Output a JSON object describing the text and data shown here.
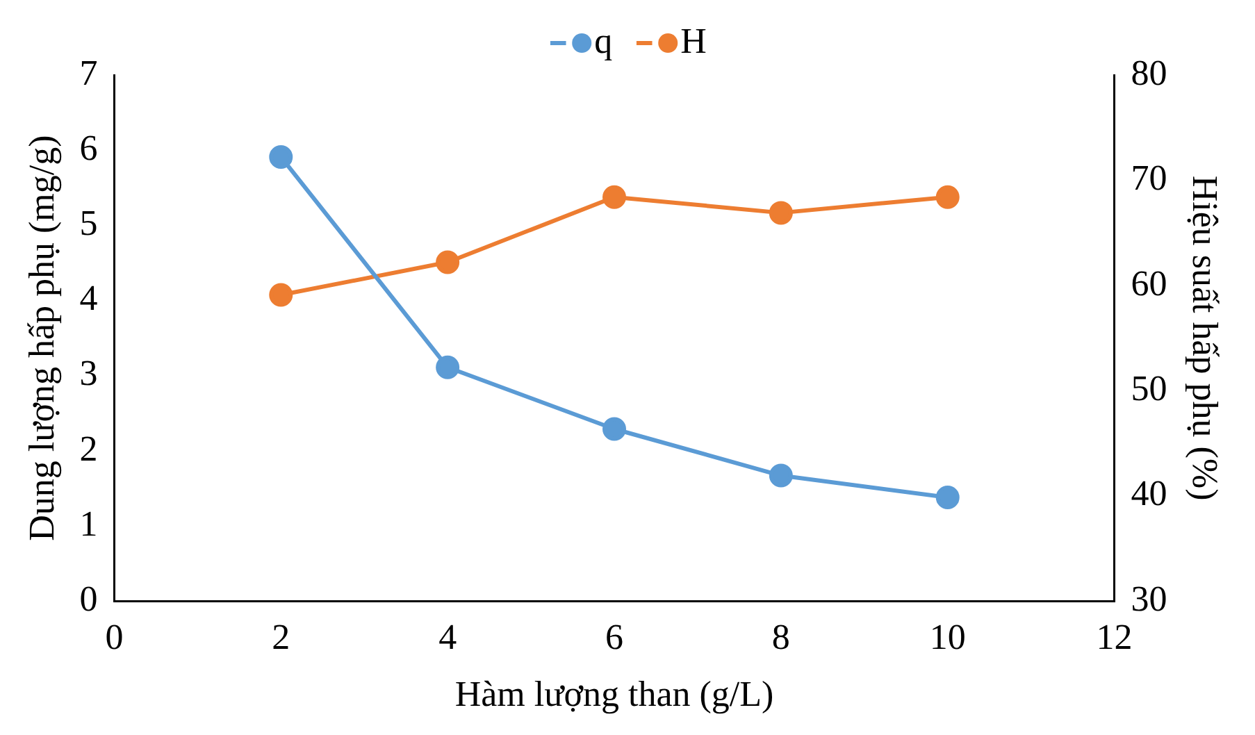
{
  "chart_data": {
    "type": "line",
    "xlabel": "Hàm lượng than (g/L)",
    "ylabel": "Dung lượng hấp phụ (mg/g)",
    "y2label": "Hiệu suất hấp phụ (%)",
    "x": [
      2,
      4,
      6,
      8,
      10
    ],
    "series": [
      {
        "name": "q",
        "color": "#5b9bd5",
        "values": [
          5.91,
          3.11,
          2.29,
          1.67,
          1.38
        ]
      },
      {
        "name": "H",
        "color": "#ed7d31",
        "values": [
          59.1,
          62.2,
          68.4,
          66.9,
          68.4
        ],
        "axis": "y2"
      }
    ],
    "xlim": [
      0,
      12
    ],
    "xticks": [
      0,
      2,
      4,
      6,
      8,
      10,
      12
    ],
    "ylim": [
      0,
      7
    ],
    "yticks": [
      0,
      1,
      2,
      3,
      4,
      5,
      6,
      7
    ],
    "y2lim": [
      30,
      80
    ],
    "y2ticks": [
      30,
      40,
      50,
      60,
      70,
      80
    ],
    "legend": "top",
    "marker": "circle",
    "grid": false
  }
}
